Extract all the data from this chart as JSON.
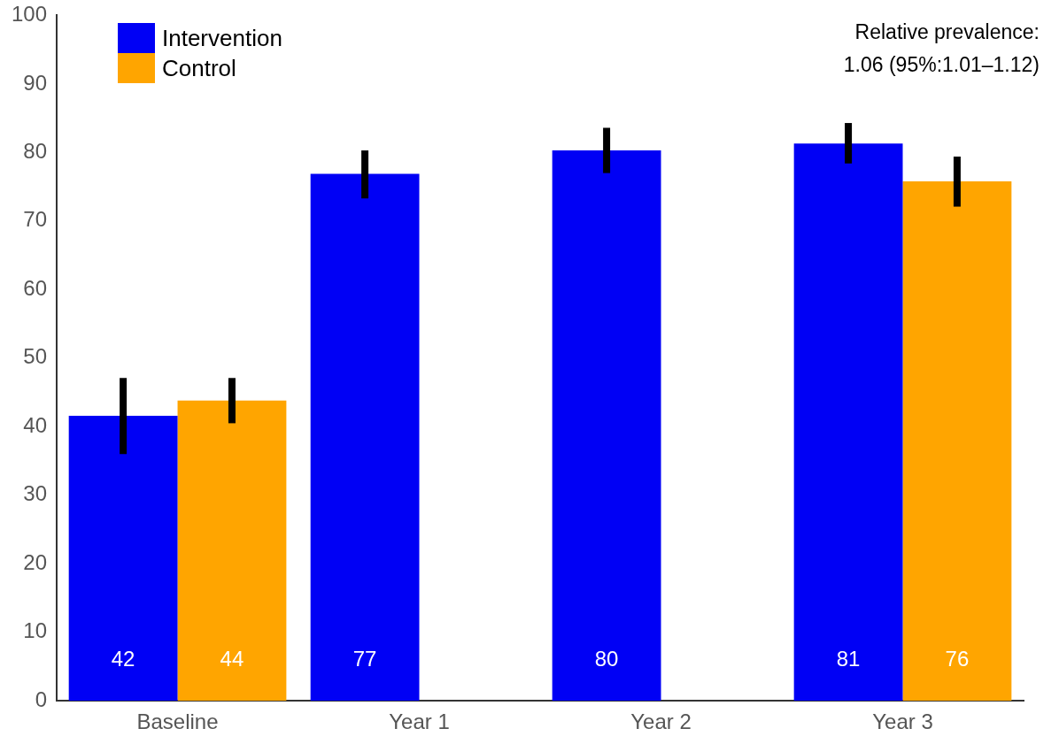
{
  "chart_data": {
    "type": "bar",
    "categories": [
      "Baseline",
      "Year 1",
      "Year 2",
      "Year 3"
    ],
    "series": [
      {
        "name": "Intervention",
        "color": "#0000f5",
        "values": [
          41.6,
          76.9,
          80.3,
          81.3
        ],
        "errors": [
          [
            36,
            47.1
          ],
          [
            73.3,
            80.3
          ],
          [
            77,
            83.6
          ],
          [
            78.4,
            84.3
          ]
        ],
        "value_labels": [
          "42",
          "77",
          "80",
          "81"
        ]
      },
      {
        "name": "Control",
        "color": "#ffa500",
        "values": [
          43.8,
          null,
          null,
          75.8
        ],
        "errors": [
          [
            40.5,
            47.1
          ],
          null,
          null,
          [
            72.1,
            79.4
          ]
        ],
        "value_labels": [
          "44",
          null,
          null,
          "76"
        ]
      }
    ],
    "ylim": [
      0,
      100
    ],
    "yticks": [
      0,
      10,
      20,
      30,
      40,
      50,
      60,
      70,
      80,
      90,
      100
    ],
    "grid": false,
    "legend": "top left",
    "annotations": [
      "Relative prevalence:",
      "1.06 (95%:1.01–1.12)"
    ]
  }
}
